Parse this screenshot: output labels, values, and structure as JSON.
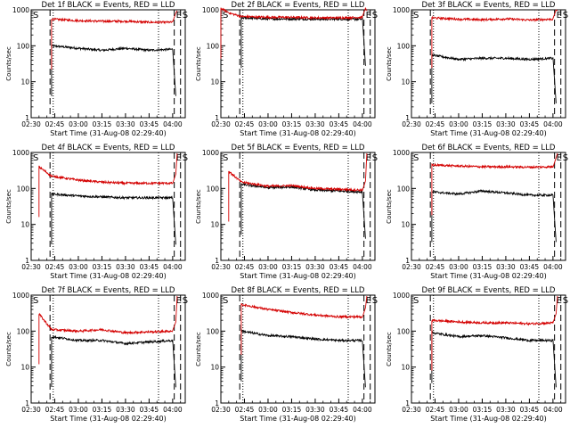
{
  "figure": {
    "colors": {
      "events": "#000000",
      "lld": "#d40000",
      "axes": "#000000",
      "background": "#ffffff"
    }
  },
  "chart_data": [
    {
      "type": "line",
      "title": "Det 1f BLACK = Events, RED = LLD",
      "xlabel": "Start Time (31-Aug-08 02:29:40)",
      "ylabel": "Counts/sec",
      "xlim": [
        "02:30",
        "04:08"
      ],
      "ylim": [
        1,
        1000
      ],
      "yscale": "log",
      "xticks": [
        "02:30",
        "02:45",
        "03:00",
        "03:15",
        "03:30",
        "03:45",
        "04:00"
      ],
      "yticks": [
        "1",
        "10",
        "100",
        "1000"
      ],
      "markers": [
        {
          "label": "S",
          "x": "02:30"
        },
        {
          "label": "E",
          "x": "04:01"
        },
        {
          "label": "S",
          "x": "04:05"
        }
      ],
      "dashed_lines": [
        "02:42",
        "04:01",
        "04:05"
      ],
      "dotted_lines": [
        "02:44",
        "03:51"
      ],
      "series": [
        {
          "name": "Events",
          "color": "#000000",
          "x": [
            "02:43",
            "03:00",
            "03:15",
            "03:30",
            "03:45",
            "04:00"
          ],
          "values": [
            100,
            85,
            75,
            85,
            75,
            80
          ]
        },
        {
          "name": "LLD",
          "color": "#d40000",
          "x": [
            "02:43",
            "03:00",
            "03:15",
            "03:30",
            "03:45",
            "04:00"
          ],
          "values": [
            550,
            500,
            480,
            480,
            450,
            450
          ]
        }
      ]
    },
    {
      "type": "line",
      "title": "Det 2f BLACK = Events, RED = LLD",
      "xlabel": "Start Time (31-Aug-08 02:29:40)",
      "ylabel": "Counts/sec",
      "xlim": [
        "02:30",
        "04:08"
      ],
      "ylim": [
        1,
        1000
      ],
      "yscale": "log",
      "xticks": [
        "02:30",
        "02:45",
        "03:00",
        "03:15",
        "03:30",
        "03:45",
        "04:00"
      ],
      "yticks": [
        "1",
        "10",
        "100",
        "1000"
      ],
      "markers": [
        {
          "label": "S",
          "x": "02:30"
        },
        {
          "label": "E",
          "x": "04:01"
        },
        {
          "label": "S",
          "x": "04:05"
        }
      ],
      "dashed_lines": [
        "02:42",
        "04:01",
        "04:05"
      ],
      "dotted_lines": [
        "02:44",
        "03:51"
      ],
      "series": [
        {
          "name": "Events",
          "color": "#000000",
          "x": [
            "02:43",
            "03:00",
            "03:15",
            "03:30",
            "03:45",
            "04:00"
          ],
          "values": [
            600,
            560,
            560,
            550,
            550,
            550
          ]
        },
        {
          "name": "LLD",
          "color": "#d40000",
          "x": [
            "02:30",
            "02:36",
            "02:43",
            "03:00",
            "03:15",
            "03:30",
            "03:45",
            "04:00"
          ],
          "values": [
            1100,
            800,
            650,
            620,
            620,
            600,
            600,
            620
          ]
        }
      ]
    },
    {
      "type": "line",
      "title": "Det 3f BLACK = Events, RED = LLD",
      "xlabel": "Start Time (31-Aug-08 02:29:40)",
      "ylabel": "Counts/sec",
      "xlim": [
        "02:30",
        "04:08"
      ],
      "ylim": [
        1,
        1000
      ],
      "yscale": "log",
      "xticks": [
        "02:30",
        "02:45",
        "03:00",
        "03:15",
        "03:30",
        "03:45",
        "04:00"
      ],
      "yticks": [
        "1",
        "10",
        "100",
        "1000"
      ],
      "markers": [
        {
          "label": "S",
          "x": "02:30"
        },
        {
          "label": "E",
          "x": "04:01"
        },
        {
          "label": "S",
          "x": "04:05"
        }
      ],
      "dashed_lines": [
        "02:42",
        "04:01",
        "04:05"
      ],
      "dotted_lines": [
        "02:44",
        "03:51"
      ],
      "series": [
        {
          "name": "Events",
          "color": "#000000",
          "x": [
            "02:43",
            "03:00",
            "03:15",
            "03:30",
            "03:45",
            "04:00"
          ],
          "values": [
            55,
            42,
            45,
            45,
            42,
            45
          ]
        },
        {
          "name": "LLD",
          "color": "#d40000",
          "x": [
            "02:43",
            "03:00",
            "03:15",
            "03:30",
            "03:45",
            "04:00"
          ],
          "values": [
            600,
            550,
            530,
            560,
            520,
            550
          ]
        }
      ]
    },
    {
      "type": "line",
      "title": "Det 4f BLACK = Events, RED = LLD",
      "xlabel": "Start Time (31-Aug-08 02:29:40)",
      "ylabel": "Counts/sec",
      "xlim": [
        "02:30",
        "04:08"
      ],
      "ylim": [
        1,
        1000
      ],
      "yscale": "log",
      "xticks": [
        "02:30",
        "02:45",
        "03:00",
        "03:15",
        "03:30",
        "03:45",
        "04:00"
      ],
      "yticks": [
        "1",
        "10",
        "100",
        "1000"
      ],
      "markers": [
        {
          "label": "S",
          "x": "02:30"
        },
        {
          "label": "E",
          "x": "04:01"
        },
        {
          "label": "S",
          "x": "04:05"
        }
      ],
      "dashed_lines": [
        "02:42",
        "04:01",
        "04:05"
      ],
      "dotted_lines": [
        "02:44",
        "03:51"
      ],
      "series": [
        {
          "name": "Events",
          "color": "#000000",
          "x": [
            "02:43",
            "03:00",
            "03:15",
            "03:30",
            "03:45",
            "04:00"
          ],
          "values": [
            70,
            62,
            58,
            55,
            55,
            55
          ]
        },
        {
          "name": "LLD",
          "color": "#d40000",
          "x": [
            "02:35",
            "02:43",
            "03:00",
            "03:15",
            "03:30",
            "03:45",
            "04:00"
          ],
          "values": [
            400,
            220,
            170,
            150,
            140,
            140,
            140
          ]
        }
      ]
    },
    {
      "type": "line",
      "title": "Det 5f BLACK = Events, RED = LLD",
      "xlabel": "Start Time (31-Aug-08 02:29:40)",
      "ylabel": "Counts/sec",
      "xlim": [
        "02:30",
        "04:08"
      ],
      "ylim": [
        1,
        1000
      ],
      "yscale": "log",
      "xticks": [
        "02:30",
        "02:45",
        "03:00",
        "03:15",
        "03:30",
        "03:45",
        "04:00"
      ],
      "yticks": [
        "1",
        "10",
        "100",
        "1000"
      ],
      "markers": [
        {
          "label": "S",
          "x": "02:30"
        },
        {
          "label": "E",
          "x": "04:01"
        },
        {
          "label": "S",
          "x": "04:05"
        }
      ],
      "dashed_lines": [
        "02:42",
        "04:01",
        "04:05"
      ],
      "dotted_lines": [
        "02:44",
        "03:51"
      ],
      "series": [
        {
          "name": "Events",
          "color": "#000000",
          "x": [
            "02:43",
            "03:00",
            "03:15",
            "03:30",
            "03:45",
            "04:00"
          ],
          "values": [
            130,
            105,
            110,
            90,
            85,
            80
          ]
        },
        {
          "name": "LLD",
          "color": "#d40000",
          "x": [
            "02:35",
            "02:43",
            "03:00",
            "03:15",
            "03:30",
            "03:45",
            "04:00"
          ],
          "values": [
            300,
            150,
            115,
            120,
            100,
            95,
            90
          ]
        }
      ]
    },
    {
      "type": "line",
      "title": "Det 6f BLACK = Events, RED = LLD",
      "xlabel": "Start Time (31-Aug-08 02:29:40)",
      "ylabel": "Counts/sec",
      "xlim": [
        "02:30",
        "04:08"
      ],
      "ylim": [
        1,
        1000
      ],
      "yscale": "log",
      "xticks": [
        "02:30",
        "02:45",
        "03:00",
        "03:15",
        "03:30",
        "03:45",
        "04:00"
      ],
      "yticks": [
        "1",
        "10",
        "100",
        "1000"
      ],
      "markers": [
        {
          "label": "S",
          "x": "02:30"
        },
        {
          "label": "E",
          "x": "04:01"
        },
        {
          "label": "S",
          "x": "04:05"
        }
      ],
      "dashed_lines": [
        "02:42",
        "04:01",
        "04:05"
      ],
      "dotted_lines": [
        "02:44",
        "03:51"
      ],
      "series": [
        {
          "name": "Events",
          "color": "#000000",
          "x": [
            "02:43",
            "03:00",
            "03:15",
            "03:30",
            "03:45",
            "04:00"
          ],
          "values": [
            80,
            70,
            85,
            75,
            65,
            65
          ]
        },
        {
          "name": "LLD",
          "color": "#d40000",
          "x": [
            "02:43",
            "03:00",
            "03:15",
            "03:30",
            "03:45",
            "04:00"
          ],
          "values": [
            450,
            420,
            400,
            400,
            390,
            400
          ]
        }
      ]
    },
    {
      "type": "line",
      "title": "Det 7f BLACK = Events, RED = LLD",
      "xlabel": "Start Time (31-Aug-08 02:29:40)",
      "ylabel": "Counts/sec",
      "xlim": [
        "02:30",
        "04:08"
      ],
      "ylim": [
        1,
        1000
      ],
      "yscale": "log",
      "xticks": [
        "02:30",
        "02:45",
        "03:00",
        "03:15",
        "03:30",
        "03:45",
        "04:00"
      ],
      "yticks": [
        "1",
        "10",
        "100",
        "1000"
      ],
      "markers": [
        {
          "label": "S",
          "x": "02:30"
        },
        {
          "label": "E",
          "x": "04:01"
        },
        {
          "label": "S",
          "x": "04:05"
        }
      ],
      "dashed_lines": [
        "02:42",
        "04:01",
        "04:05"
      ],
      "dotted_lines": [
        "02:44",
        "03:51"
      ],
      "series": [
        {
          "name": "Events",
          "color": "#000000",
          "x": [
            "02:43",
            "03:00",
            "03:15",
            "03:30",
            "03:45",
            "04:00"
          ],
          "values": [
            70,
            55,
            55,
            45,
            50,
            55
          ]
        },
        {
          "name": "LLD",
          "color": "#d40000",
          "x": [
            "02:35",
            "02:43",
            "03:00",
            "03:15",
            "03:30",
            "03:45",
            "04:00"
          ],
          "values": [
            300,
            110,
            100,
            110,
            90,
            95,
            100
          ]
        }
      ]
    },
    {
      "type": "line",
      "title": "Det 8f BLACK = Events, RED = LLD",
      "xlabel": "Start Time (31-Aug-08 02:29:40)",
      "ylabel": "Counts/sec",
      "xlim": [
        "02:30",
        "04:08"
      ],
      "ylim": [
        1,
        1000
      ],
      "yscale": "log",
      "xticks": [
        "02:30",
        "02:45",
        "03:00",
        "03:15",
        "03:30",
        "03:45",
        "04:00"
      ],
      "yticks": [
        "1",
        "10",
        "100",
        "1000"
      ],
      "markers": [
        {
          "label": "S",
          "x": "02:30"
        },
        {
          "label": "E",
          "x": "04:01"
        },
        {
          "label": "S",
          "x": "04:05"
        }
      ],
      "dashed_lines": [
        "02:42",
        "04:01",
        "04:05"
      ],
      "dotted_lines": [
        "02:44",
        "03:51"
      ],
      "series": [
        {
          "name": "Events",
          "color": "#000000",
          "x": [
            "02:43",
            "03:00",
            "03:15",
            "03:30",
            "03:45",
            "04:00"
          ],
          "values": [
            100,
            75,
            70,
            60,
            55,
            55
          ]
        },
        {
          "name": "LLD",
          "color": "#d40000",
          "x": [
            "02:43",
            "03:00",
            "03:15",
            "03:30",
            "03:45",
            "04:00"
          ],
          "values": [
            550,
            400,
            330,
            280,
            250,
            250
          ]
        }
      ]
    },
    {
      "type": "line",
      "title": "Det 9f BLACK = Events, RED = LLD",
      "xlabel": "Start Time (31-Aug-08 02:29:40)",
      "ylabel": "Counts/sec",
      "xlim": [
        "02:30",
        "04:08"
      ],
      "ylim": [
        1,
        1000
      ],
      "yscale": "log",
      "xticks": [
        "02:30",
        "02:45",
        "03:00",
        "03:15",
        "03:30",
        "03:45",
        "04:00"
      ],
      "yticks": [
        "1",
        "10",
        "100",
        "1000"
      ],
      "markers": [
        {
          "label": "S",
          "x": "02:30"
        },
        {
          "label": "E",
          "x": "04:01"
        },
        {
          "label": "S",
          "x": "04:05"
        }
      ],
      "dashed_lines": [
        "02:42",
        "04:01",
        "04:05"
      ],
      "dotted_lines": [
        "02:44",
        "03:51"
      ],
      "series": [
        {
          "name": "Events",
          "color": "#000000",
          "x": [
            "02:43",
            "03:00",
            "03:15",
            "03:30",
            "03:45",
            "04:00"
          ],
          "values": [
            90,
            70,
            75,
            65,
            55,
            55
          ]
        },
        {
          "name": "LLD",
          "color": "#d40000",
          "x": [
            "02:43",
            "03:00",
            "03:15",
            "03:30",
            "03:45",
            "04:00"
          ],
          "values": [
            200,
            180,
            170,
            170,
            160,
            170
          ]
        }
      ]
    }
  ]
}
